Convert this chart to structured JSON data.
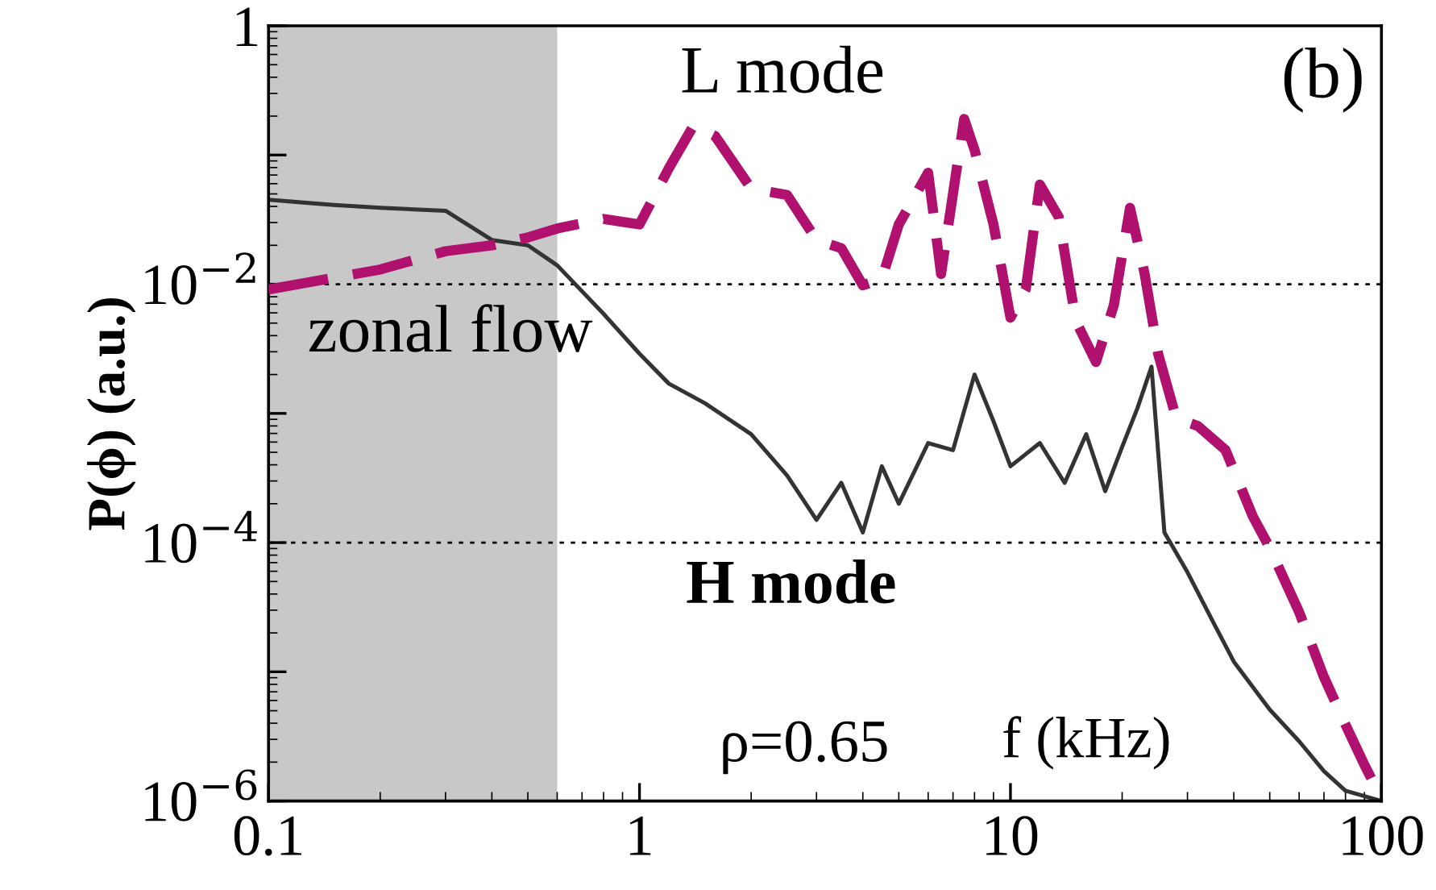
{
  "chart_data": {
    "type": "line",
    "ylabel": "P(ϕ) (a.u.)",
    "xlabel": "f (kHz)",
    "log": "xy",
    "legend": false,
    "grid": false,
    "xlim": [
      0.1,
      100
    ],
    "ylim": [
      1e-06,
      1
    ],
    "xticks": [
      0.1,
      1,
      10,
      100
    ],
    "yticks": [
      {
        "value": 1e-06,
        "label": "10$^{−6}$"
      },
      {
        "value": 1e-05,
        "label": null
      },
      {
        "value": 0.0001,
        "label": "10$^{−4}$"
      },
      {
        "value": 0.001,
        "label": null
      },
      {
        "value": 0.01,
        "label": "10$^{−2}$"
      },
      {
        "value": 0.1,
        "label": null
      },
      {
        "value": 1,
        "label": "1"
      }
    ],
    "bands": [
      {
        "axis": "x",
        "from": 0.1,
        "to": 0.6,
        "label": "zonal flow",
        "color": "#c8c8c8"
      }
    ],
    "ref_lines": [
      {
        "axis": "y",
        "value": 0.01,
        "line_style": "dotted",
        "color": "#000000"
      },
      {
        "axis": "y",
        "value": 0.0001,
        "line_style": "dotted",
        "color": "#000000"
      }
    ],
    "annotations": [
      "(b)",
      "ρ=0.65"
    ],
    "series": [
      {
        "name": "L mode",
        "color": "#b0106e",
        "line_style": "dashed",
        "x": [
          0.1,
          0.2,
          0.3,
          0.4,
          0.5,
          0.6,
          0.8,
          1,
          1.2,
          1.4,
          1.6,
          2,
          2.5,
          3,
          3.5,
          4,
          4.5,
          5,
          6,
          6.5,
          7.5,
          8,
          9,
          10,
          11,
          12,
          13.5,
          15,
          17,
          19,
          21,
          23,
          25,
          28,
          32,
          38,
          45,
          50,
          60,
          70,
          80,
          90,
          100
        ],
        "values": [
          0.0091,
          0.013,
          0.018,
          0.02,
          0.023,
          0.027,
          0.032,
          0.029,
          0.079,
          0.17,
          0.14,
          0.055,
          0.049,
          0.022,
          0.019,
          0.0098,
          0.011,
          0.029,
          0.073,
          0.012,
          0.19,
          0.11,
          0.029,
          0.0055,
          0.0092,
          0.059,
          0.033,
          0.0052,
          0.0025,
          0.0069,
          0.039,
          0.012,
          0.0029,
          0.00091,
          0.0008,
          0.00052,
          0.00016,
          9.1e-05,
          2.9e-05,
          9.1e-06,
          3.9e-06,
          1.9e-06,
          1.05e-06
        ]
      },
      {
        "name": "H mode",
        "color": "#333333",
        "line_style": "solid",
        "x": [
          0.1,
          0.15,
          0.2,
          0.3,
          0.4,
          0.5,
          0.6,
          0.8,
          1,
          1.2,
          1.5,
          2,
          2.5,
          3,
          3.5,
          4,
          4.5,
          5,
          6,
          7,
          8,
          9,
          10,
          12,
          14,
          16,
          18,
          20,
          22,
          24,
          26,
          30,
          35,
          40,
          50,
          60,
          70,
          80,
          100
        ],
        "values": [
          0.045,
          0.041,
          0.039,
          0.037,
          0.022,
          0.02,
          0.014,
          0.0059,
          0.0029,
          0.0017,
          0.0012,
          0.00069,
          0.00033,
          0.00015,
          0.00029,
          0.00012,
          0.00039,
          0.0002,
          0.00059,
          0.00052,
          0.002,
          0.00087,
          0.00039,
          0.00059,
          0.00029,
          0.00069,
          0.00025,
          0.00055,
          0.0011,
          0.0023,
          0.00012,
          5.9e-05,
          2.5e-05,
          1.2e-05,
          5.1e-06,
          2.9e-06,
          1.7e-06,
          1.2e-06,
          1e-06
        ]
      }
    ]
  }
}
